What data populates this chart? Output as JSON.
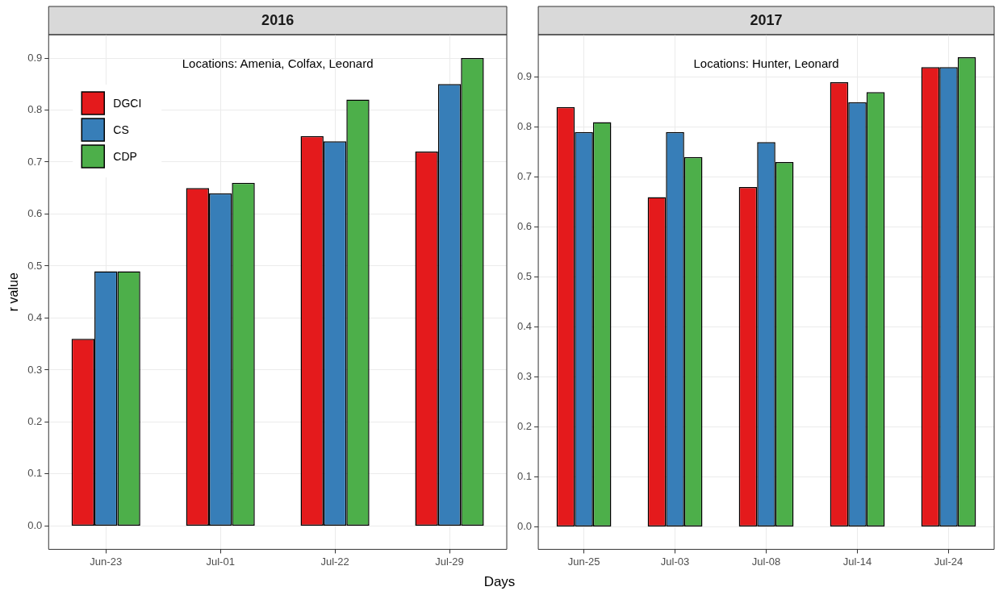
{
  "chart_data": [
    {
      "type": "bar",
      "title": "2016",
      "xlabel": "Days",
      "ylabel": "r value",
      "annotations": [
        "Locations: Amenia, Colfax, Leonard"
      ],
      "categories": [
        "Jun-23",
        "Jul-01",
        "Jul-22",
        "Jul-29"
      ],
      "series": [
        {
          "name": "DGCI",
          "color": "#e41a1c",
          "values": [
            0.36,
            0.65,
            0.75,
            0.72
          ]
        },
        {
          "name": "CS",
          "color": "#377eb8",
          "values": [
            0.49,
            0.64,
            0.74,
            0.85
          ]
        },
        {
          "name": "CDP",
          "color": "#4daf4a",
          "values": [
            0.49,
            0.66,
            0.82,
            0.9
          ]
        }
      ],
      "ylim": [
        -0.045,
        0.945
      ],
      "yticks": [
        {
          "value": 0,
          "label": "0.0"
        },
        {
          "value": 0.1,
          "label": "0.1"
        },
        {
          "value": 0.2,
          "label": "0.2"
        },
        {
          "value": 0.3,
          "label": "0.3"
        },
        {
          "value": 0.4,
          "label": "0.4"
        },
        {
          "value": 0.5,
          "label": "0.5"
        },
        {
          "value": 0.6,
          "label": "0.6"
        },
        {
          "value": 0.7,
          "label": "0.7"
        },
        {
          "value": 0.8,
          "label": "0.8"
        },
        {
          "value": 0.9,
          "label": "0.9"
        }
      ],
      "grid": true,
      "legend": "top left"
    },
    {
      "type": "bar",
      "title": "2017",
      "annotations": [
        "Locations: Hunter, Leonard"
      ],
      "categories": [
        "Jun-25",
        "Jul-03",
        "Jul-08",
        "Jul-14",
        "Jul-24"
      ],
      "series": [
        {
          "color": "#e41a1c",
          "values": [
            0.84,
            0.66,
            0.68,
            0.89,
            0.92
          ]
        },
        {
          "color": "#377eb8",
          "values": [
            0.79,
            0.79,
            0.77,
            0.85,
            0.92
          ]
        },
        {
          "color": "#4daf4a",
          "values": [
            0.81,
            0.74,
            0.73,
            0.87,
            0.94
          ]
        }
      ],
      "ylim": [
        -0.045,
        0.985
      ],
      "yticks": [
        {
          "value": 0,
          "label": "0.0"
        },
        {
          "value": 0.1,
          "label": "0.1"
        },
        {
          "value": 0.2,
          "label": "0.2"
        },
        {
          "value": 0.3,
          "label": "0.3"
        },
        {
          "value": 0.4,
          "label": "0.4"
        },
        {
          "value": 0.5,
          "label": "0.5"
        },
        {
          "value": 0.6,
          "label": "0.6"
        },
        {
          "value": 0.7,
          "label": "0.7"
        },
        {
          "value": 0.8,
          "label": "0.8"
        },
        {
          "value": 0.9,
          "label": "0.9"
        }
      ],
      "grid": true
    }
  ]
}
